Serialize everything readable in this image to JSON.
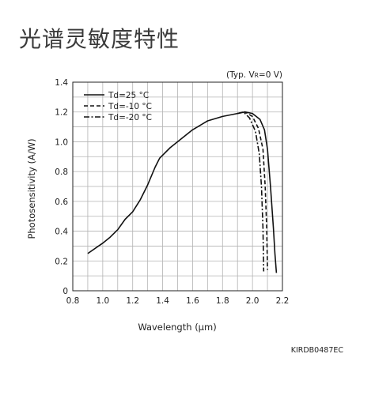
{
  "page": {
    "title": "光谱灵敏度特性",
    "doc_code": "KIRDB0487EC"
  },
  "chart_data": {
    "type": "line",
    "xlabel": "Wavelength (µm)",
    "ylabel": "Photosensitivity (A/W)",
    "xlim": [
      0.8,
      2.2
    ],
    "ylim": [
      0,
      1.4
    ],
    "xticks": [
      "0.8",
      "1.0",
      "1.2",
      "1.4",
      "1.6",
      "1.8",
      "2.0",
      "2.2"
    ],
    "yticks": [
      "0",
      "0.2",
      "0.4",
      "0.6",
      "0.8",
      "1.0",
      "1.2",
      "1.4"
    ],
    "grid": true,
    "legend_position": "top-left",
    "annotation": {
      "prefix": "(Typ. V",
      "subscript": "R",
      "suffix": "=0 V)"
    },
    "series": [
      {
        "name": "Td=25 °C",
        "dash": "solid",
        "points": [
          [
            0.9,
            0.25
          ],
          [
            1.0,
            0.32
          ],
          [
            1.05,
            0.36
          ],
          [
            1.1,
            0.41
          ],
          [
            1.15,
            0.48
          ],
          [
            1.2,
            0.53
          ],
          [
            1.25,
            0.61
          ],
          [
            1.3,
            0.71
          ],
          [
            1.35,
            0.83
          ],
          [
            1.38,
            0.89
          ],
          [
            1.45,
            0.96
          ],
          [
            1.5,
            1.0
          ],
          [
            1.6,
            1.08
          ],
          [
            1.7,
            1.14
          ],
          [
            1.8,
            1.17
          ],
          [
            1.9,
            1.19
          ],
          [
            1.95,
            1.2
          ],
          [
            2.0,
            1.19
          ],
          [
            2.05,
            1.15
          ],
          [
            2.08,
            1.08
          ],
          [
            2.1,
            0.95
          ],
          [
            2.12,
            0.7
          ],
          [
            2.14,
            0.42
          ],
          [
            2.15,
            0.25
          ],
          [
            2.16,
            0.12
          ]
        ]
      },
      {
        "name": "Td=-10 °C",
        "dash": "dashed",
        "points": [
          [
            1.9,
            1.19
          ],
          [
            1.95,
            1.2
          ],
          [
            2.0,
            1.17
          ],
          [
            2.04,
            1.09
          ],
          [
            2.07,
            0.95
          ],
          [
            2.085,
            0.7
          ],
          [
            2.095,
            0.42
          ],
          [
            2.1,
            0.14
          ]
        ]
      },
      {
        "name": "Td=-20 °C",
        "dash": "dashdot",
        "points": [
          [
            1.9,
            1.19
          ],
          [
            1.94,
            1.2
          ],
          [
            1.98,
            1.16
          ],
          [
            2.02,
            1.07
          ],
          [
            2.045,
            0.92
          ],
          [
            2.06,
            0.7
          ],
          [
            2.07,
            0.42
          ],
          [
            2.075,
            0.13
          ]
        ]
      }
    ]
  }
}
